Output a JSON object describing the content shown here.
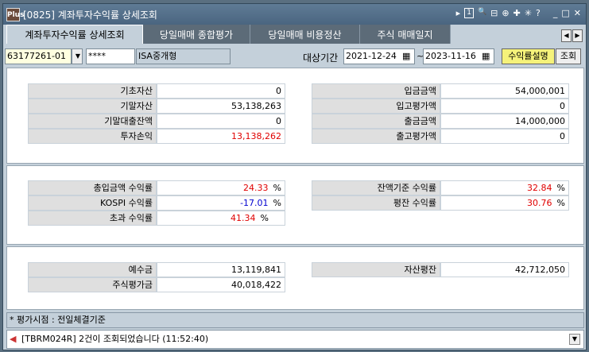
{
  "window": {
    "title": "[0825] 계좌투자수익률 상세조회",
    "logo": "Plus",
    "icons": [
      "▸",
      "1",
      "🔍",
      "⊟",
      "⊕",
      "✚",
      "✳",
      "?"
    ],
    "controls": [
      "_",
      "□",
      "✕"
    ]
  },
  "tabs": [
    {
      "label": "계좌투자수익률 상세조회",
      "active": true
    },
    {
      "label": "당일매매 종합평가"
    },
    {
      "label": "당일매매 비용정산"
    },
    {
      "label": "주식 매매일지"
    }
  ],
  "toolbar": {
    "account": "63177261-01",
    "password": "****",
    "account_type": "ISA중개형",
    "period_label": "대상기간",
    "start_date": "2021-12-24",
    "tilde": "~",
    "end_date": "2023-11-16",
    "explain_button": "수익률설명",
    "query_button": "조회"
  },
  "panel1": {
    "left": [
      {
        "label": "기초자산",
        "value": "0"
      },
      {
        "label": "기말자산",
        "value": "53,138,263"
      },
      {
        "label": "기말대출잔액",
        "value": "0"
      },
      {
        "label": "투자손익",
        "value": "13,138,262"
      }
    ],
    "right": [
      {
        "label": "입금금액",
        "value": "54,000,001"
      },
      {
        "label": "입고평가액",
        "value": "0"
      },
      {
        "label": "출금금액",
        "value": "14,000,000"
      },
      {
        "label": "출고평가액",
        "value": "0"
      }
    ]
  },
  "panel2": {
    "unit": "%",
    "left": [
      {
        "label": "총입금액 수익률",
        "value": "24.33"
      },
      {
        "label": "KOSPI 수익률",
        "value": "-17.01"
      },
      {
        "label": "초과 수익률",
        "value": "41.34"
      }
    ],
    "right": [
      {
        "label": "잔액기준 수익률",
        "value": "32.84"
      },
      {
        "label": "평잔 수익률",
        "value": "30.76"
      }
    ]
  },
  "panel3": {
    "left": [
      {
        "label": "예수금",
        "value": "13,119,841"
      },
      {
        "label": "주식평가금",
        "value": "40,018,422"
      }
    ],
    "right": [
      {
        "label": "자산평잔",
        "value": "42,712,050"
      }
    ]
  },
  "footer": {
    "note": "* 평가시점 : 전일체결기준"
  },
  "status": {
    "message": "[TBRM024R] 2건이 조회되었습니다 (11:52:40)"
  },
  "colors": {
    "positive": "#e00000",
    "negative": "#0000d0",
    "highlight_button": "#f5f27a"
  }
}
